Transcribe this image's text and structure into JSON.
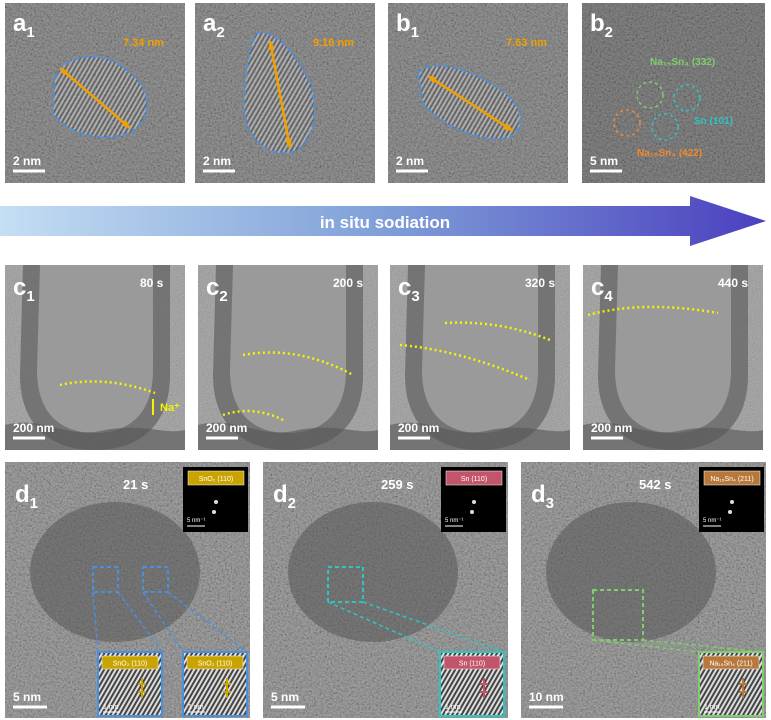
{
  "panels_top": [
    {
      "label": {
        "letter": "a",
        "sub": "1"
      },
      "measure": "7.34 nm",
      "scale": "2 nm"
    },
    {
      "label": {
        "letter": "a",
        "sub": "2"
      },
      "measure": "9.16 nm",
      "scale": "2 nm"
    },
    {
      "label": {
        "letter": "b",
        "sub": "1"
      },
      "measure": "7.63 nm",
      "scale": "2 nm"
    },
    {
      "label": {
        "letter": "b",
        "sub": "2"
      },
      "annotations": [
        "Na₁₅Sn₄ (332)",
        "Sn (101)",
        "Na₁₅Sn₄ (422)"
      ],
      "scale": "5 nm"
    }
  ],
  "arrow": "in situ sodiation",
  "panels_middle": [
    {
      "label": {
        "letter": "c",
        "sub": "1"
      },
      "time": "80 s",
      "scale": "200 nm",
      "annotation": "Na⁺"
    },
    {
      "label": {
        "letter": "c",
        "sub": "2"
      },
      "time": "200 s",
      "scale": "200 nm"
    },
    {
      "label": {
        "letter": "c",
        "sub": "3"
      },
      "time": "320 s",
      "scale": "200 nm"
    },
    {
      "label": {
        "letter": "c",
        "sub": "4"
      },
      "time": "440 s",
      "scale": "200 nm"
    }
  ],
  "panels_bottom": [
    {
      "label": {
        "letter": "d",
        "sub": "1"
      },
      "time": "21 s",
      "inset_title": "SnO₂ (110)",
      "inset_scale": "5 nm⁻¹",
      "scale": "5 nm",
      "zooms": [
        {
          "title": "SnO₂ (110)",
          "scale": "1 nm"
        },
        {
          "title": "SnO₂ (110)",
          "scale": "1 nm"
        }
      ]
    },
    {
      "label": {
        "letter": "d",
        "sub": "2"
      },
      "time": "259 s",
      "inset_title": "Sn (110)",
      "inset_scale": "5 nm⁻¹",
      "scale": "5 nm",
      "zooms": [
        {
          "title": "Sn (110)",
          "scale": "1 nm"
        }
      ]
    },
    {
      "label": {
        "letter": "d",
        "sub": "3"
      },
      "time": "542 s",
      "inset_title": "Na₁₅Sn₄ (211)",
      "inset_scale": "5 nm⁻¹",
      "scale": "10 nm",
      "zooms": [
        {
          "title": "Na₁₅Sn₄ (211)",
          "scale": "1 nm"
        }
      ]
    }
  ]
}
